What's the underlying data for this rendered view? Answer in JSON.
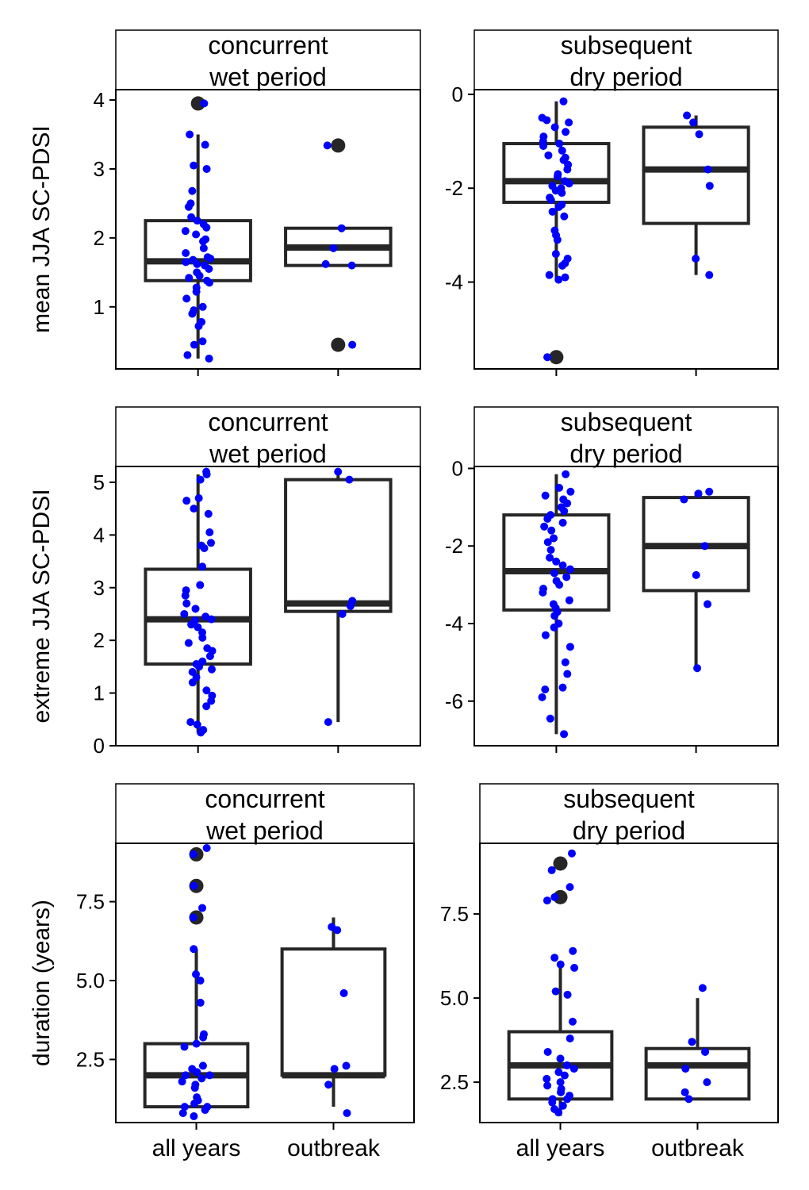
{
  "colors": {
    "points": "#0000ff",
    "box": "#262626",
    "outlier": "#262626",
    "frame": "#000000",
    "background": "#ffffff"
  },
  "row_ylabels": [
    "mean JJA SC-PDSI",
    "extreme JJA SC-PDSI",
    "duration (years)"
  ],
  "x_categories": [
    "all years",
    "outbreak"
  ],
  "chart_data": [
    {
      "type": "box",
      "row": 0,
      "col": 0,
      "strip": [
        "concurrent",
        "wet period"
      ],
      "ylabel": "mean JJA SC-PDSI",
      "ylim": [
        0.1,
        4.15
      ],
      "yticks": [
        1,
        2,
        3,
        4
      ],
      "ytick_labels": [
        "1",
        "2",
        "3",
        "4"
      ],
      "boxes": [
        {
          "category": "all years",
          "q1": 1.38,
          "median": 1.66,
          "q3": 2.25,
          "whisker_low": 0.25,
          "whisker_high": 3.5,
          "outliers": [
            3.95
          ]
        },
        {
          "category": "outbreak",
          "q1": 1.6,
          "median": 1.86,
          "q3": 2.14,
          "whisker_low": 1.6,
          "whisker_high": 2.14,
          "outliers": [
            3.34,
            0.45
          ]
        }
      ],
      "points": {
        "all years": [
          3.95,
          3.5,
          3.35,
          3.05,
          3.0,
          2.68,
          2.5,
          2.45,
          2.3,
          2.25,
          2.2,
          2.15,
          2.1,
          2.05,
          1.98,
          1.95,
          1.85,
          1.78,
          1.72,
          1.7,
          1.68,
          1.65,
          1.62,
          1.6,
          1.55,
          1.5,
          1.45,
          1.42,
          1.38,
          1.35,
          1.28,
          1.22,
          1.12,
          1.0,
          0.95,
          0.9,
          0.78,
          0.72,
          0.5,
          0.45,
          0.3,
          0.25
        ],
        "outbreak": [
          3.34,
          2.14,
          1.85,
          1.62,
          1.6,
          0.45
        ]
      }
    },
    {
      "type": "box",
      "row": 0,
      "col": 1,
      "strip": [
        "subsequent",
        "dry period"
      ],
      "ylabel": "",
      "ylim": [
        -5.85,
        0.1
      ],
      "yticks": [
        -4,
        -2,
        0
      ],
      "ytick_labels": [
        "-4",
        "-2",
        "0"
      ],
      "boxes": [
        {
          "category": "all years",
          "q1": -2.3,
          "median": -1.85,
          "q3": -1.05,
          "whisker_low": -3.95,
          "whisker_high": -0.15,
          "outliers": [
            -5.6
          ]
        },
        {
          "category": "outbreak",
          "q1": -2.75,
          "median": -1.6,
          "q3": -0.7,
          "whisker_low": -3.85,
          "whisker_high": -0.45,
          "outliers": []
        }
      ],
      "points": {
        "all years": [
          -0.15,
          -0.5,
          -0.55,
          -0.6,
          -0.7,
          -0.8,
          -0.9,
          -1.0,
          -1.05,
          -1.1,
          -1.2,
          -1.3,
          -1.35,
          -1.4,
          -1.5,
          -1.6,
          -1.7,
          -1.75,
          -1.85,
          -1.9,
          -1.95,
          -2.0,
          -2.05,
          -2.1,
          -2.2,
          -2.25,
          -2.35,
          -2.4,
          -2.5,
          -2.6,
          -2.9,
          -3.0,
          -3.1,
          -3.4,
          -3.5,
          -3.6,
          -3.65,
          -3.85,
          -3.9,
          -3.95,
          -5.6
        ],
        "outbreak": [
          -0.45,
          -0.6,
          -0.85,
          -1.6,
          -1.95,
          -3.5,
          -3.85
        ]
      }
    },
    {
      "type": "box",
      "row": 1,
      "col": 0,
      "strip": [
        "concurrent",
        "wet period"
      ],
      "ylabel": "extreme JJA SC-PDSI",
      "ylim": [
        0,
        5.3
      ],
      "yticks": [
        0,
        1,
        2,
        3,
        4,
        5
      ],
      "ytick_labels": [
        "0",
        "1",
        "2",
        "3",
        "4",
        "5"
      ],
      "boxes": [
        {
          "category": "all years",
          "q1": 1.55,
          "median": 2.4,
          "q3": 3.35,
          "whisker_low": 0.25,
          "whisker_high": 5.15,
          "outliers": []
        },
        {
          "category": "outbreak",
          "q1": 2.55,
          "median": 2.7,
          "q3": 5.05,
          "whisker_low": 0.45,
          "whisker_high": 5.2,
          "outliers": []
        }
      ],
      "points": {
        "all years": [
          5.2,
          5.15,
          5.05,
          4.7,
          4.65,
          4.5,
          4.4,
          4.05,
          3.85,
          3.8,
          3.75,
          3.4,
          3.05,
          2.95,
          2.85,
          2.7,
          2.6,
          2.5,
          2.45,
          2.4,
          2.38,
          2.3,
          2.25,
          2.15,
          2.05,
          1.95,
          1.85,
          1.8,
          1.7,
          1.6,
          1.55,
          1.5,
          1.45,
          1.4,
          1.3,
          1.2,
          1.05,
          0.95,
          0.85,
          0.75,
          0.45,
          0.4,
          0.3,
          0.25
        ],
        "outbreak": [
          5.2,
          5.05,
          2.75,
          2.65,
          2.5,
          0.45
        ]
      }
    },
    {
      "type": "box",
      "row": 1,
      "col": 1,
      "strip": [
        "subsequent",
        "dry period"
      ],
      "ylabel": "",
      "ylim": [
        -7.15,
        0.05
      ],
      "yticks": [
        -6,
        -4,
        -2,
        0
      ],
      "ytick_labels": [
        "-6",
        "-4",
        "-2",
        "0"
      ],
      "boxes": [
        {
          "category": "all years",
          "q1": -3.65,
          "median": -2.65,
          "q3": -1.2,
          "whisker_low": -6.85,
          "whisker_high": -0.15,
          "outliers": []
        },
        {
          "category": "outbreak",
          "q1": -3.15,
          "median": -2.0,
          "q3": -0.75,
          "whisker_low": -5.15,
          "whisker_high": -0.6,
          "outliers": []
        }
      ],
      "points": {
        "all years": [
          -0.15,
          -0.5,
          -0.6,
          -0.7,
          -0.8,
          -0.9,
          -1.0,
          -1.1,
          -1.2,
          -1.3,
          -1.4,
          -1.5,
          -1.6,
          -1.8,
          -1.9,
          -2.1,
          -2.3,
          -2.4,
          -2.5,
          -2.6,
          -2.7,
          -2.8,
          -2.9,
          -3.0,
          -3.1,
          -3.2,
          -3.4,
          -3.5,
          -3.6,
          -3.7,
          -3.8,
          -4.0,
          -4.1,
          -4.3,
          -4.6,
          -5.0,
          -5.3,
          -5.65,
          -5.7,
          -5.9,
          -6.45,
          -6.85
        ],
        "outbreak": [
          -0.6,
          -0.65,
          -0.8,
          -2.0,
          -2.75,
          -3.5,
          -5.15
        ]
      }
    },
    {
      "type": "box",
      "row": 2,
      "col": 0,
      "strip": [
        "concurrent",
        "wet period"
      ],
      "ylabel": "duration (years)",
      "ylim": [
        0.5,
        9.35
      ],
      "yticks": [
        2.5,
        5.0,
        7.5
      ],
      "ytick_labels": [
        "2.5",
        "5.0",
        "7.5"
      ],
      "boxes": [
        {
          "category": "all years",
          "q1": 1.0,
          "median": 2.0,
          "q3": 3.0,
          "whisker_low": 1.0,
          "whisker_high": 6.0,
          "outliers": [
            7.0,
            8.0,
            9.0
          ]
        },
        {
          "category": "outbreak",
          "q1": 2.0,
          "median": 2.0,
          "q3": 6.0,
          "whisker_low": 1.0,
          "whisker_high": 7.0,
          "outliers": []
        }
      ],
      "points": {
        "all years": [
          9.2,
          9.0,
          8.0,
          7.3,
          7.0,
          6.0,
          5.2,
          5.0,
          4.3,
          3.3,
          3.2,
          3.0,
          2.9,
          2.3,
          2.2,
          2.1,
          2.0,
          2.0,
          1.9,
          1.8,
          1.7,
          1.6,
          1.3,
          1.2,
          1.1,
          1.0,
          1.0,
          0.9,
          0.8,
          0.7
        ],
        "outbreak": [
          6.7,
          6.6,
          4.6,
          2.3,
          2.2,
          1.7,
          0.8
        ]
      }
    },
    {
      "type": "box",
      "row": 2,
      "col": 1,
      "strip": [
        "subsequent",
        "dry period"
      ],
      "ylabel": "",
      "ylim": [
        1.3,
        9.6
      ],
      "yticks": [
        2.5,
        5.0,
        7.5
      ],
      "ytick_labels": [
        "2.5",
        "5.0",
        "7.5"
      ],
      "boxes": [
        {
          "category": "all years",
          "q1": 2.0,
          "median": 3.0,
          "q3": 4.0,
          "whisker_low": 1.5,
          "whisker_high": 6.0,
          "outliers": [
            8.0,
            9.0
          ]
        },
        {
          "category": "outbreak",
          "q1": 2.0,
          "median": 3.0,
          "q3": 3.5,
          "whisker_low": 2.0,
          "whisker_high": 5.0,
          "outliers": []
        }
      ],
      "points": {
        "all years": [
          9.3,
          8.8,
          8.3,
          8.0,
          7.9,
          6.4,
          6.2,
          6.0,
          5.9,
          5.2,
          5.1,
          4.3,
          3.8,
          3.4,
          3.2,
          3.0,
          2.9,
          2.8,
          2.7,
          2.6,
          2.5,
          2.4,
          2.3,
          2.2,
          2.1,
          2.0,
          2.0,
          1.9,
          1.8,
          1.7,
          1.6
        ],
        "outbreak": [
          5.3,
          3.7,
          3.4,
          2.9,
          2.5,
          2.2,
          2.0
        ]
      }
    }
  ]
}
